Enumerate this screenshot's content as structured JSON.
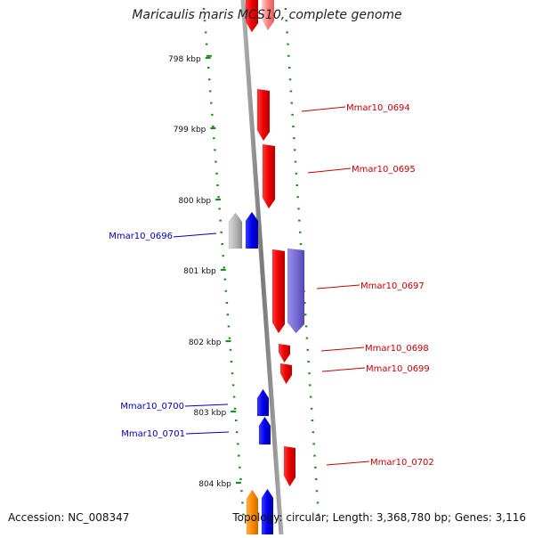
{
  "title": "Maricaulis maris MCS10, complete genome",
  "footer": {
    "accession": "Accession: NC_008347",
    "summary": "Topology: circular; Length: 3,368,780 bp; Genes: 3,116"
  },
  "colors": {
    "forward": "#ee0000",
    "reverse": "#0000dd",
    "forward_label": "#cc0000",
    "reverse_label": "#0000bb",
    "tick": "#228b22",
    "backbone": "#888888",
    "pale_feature": "#b8b8b8",
    "purple_feature": "#7a6fd6",
    "orange_feature": "#ff8800"
  },
  "ticks": [
    "798 kbp",
    "799 kbp",
    "800 kbp",
    "801 kbp",
    "802 kbp",
    "803 kbp",
    "804 kbp"
  ],
  "genes": [
    {
      "label": "",
      "strand": "forward",
      "color": "forward"
    },
    {
      "label": "Mmar10_0694",
      "strand": "forward",
      "color": "forward"
    },
    {
      "label": "Mmar10_0695",
      "strand": "forward",
      "color": "forward"
    },
    {
      "label": "Mmar10_0696",
      "strand": "reverse",
      "color": "reverse"
    },
    {
      "label": "",
      "strand": "reverse",
      "color": "pale_feature"
    },
    {
      "label": "Mmar10_0697",
      "strand": "forward",
      "color": "forward"
    },
    {
      "label": "",
      "strand": "forward",
      "color": "purple_feature"
    },
    {
      "label": "Mmar10_0698",
      "strand": "forward",
      "color": "forward"
    },
    {
      "label": "Mmar10_0699",
      "strand": "forward",
      "color": "forward"
    },
    {
      "label": "Mmar10_0700",
      "strand": "reverse",
      "color": "reverse"
    },
    {
      "label": "Mmar10_0701",
      "strand": "reverse",
      "color": "reverse"
    },
    {
      "label": "Mmar10_0702",
      "strand": "forward",
      "color": "forward"
    },
    {
      "label": "",
      "strand": "reverse",
      "color": "orange_feature"
    },
    {
      "label": "",
      "strand": "reverse",
      "color": "reverse"
    }
  ]
}
